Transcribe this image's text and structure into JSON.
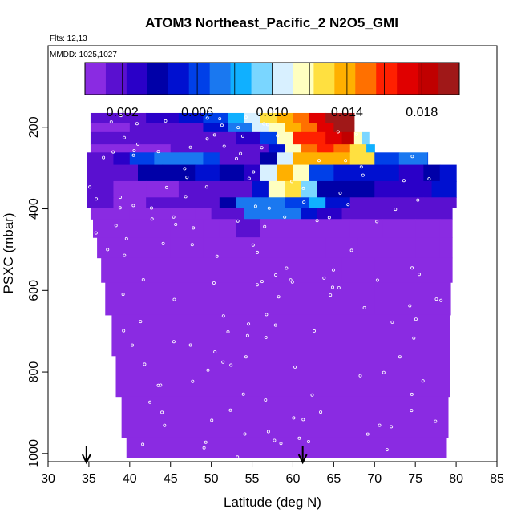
{
  "chart_data": {
    "type": "heatmap",
    "title": "ATOM3 Northeast_Pacific_2 N2O5_GMI",
    "flights_label": "Flts: 12,13",
    "mmdd_label": "MMDD: 1025,1027",
    "xlabel": "Latitude (deg N)",
    "ylabel": "PSXC (mbar)",
    "xlim": [
      30,
      85
    ],
    "ylim": [
      1020,
      0
    ],
    "xticks": [
      "30",
      "35",
      "40",
      "45",
      "50",
      "55",
      "60",
      "65",
      "70",
      "75",
      "80",
      "85"
    ],
    "xtick_values": [
      30,
      35,
      40,
      45,
      50,
      55,
      60,
      65,
      70,
      75,
      80,
      85
    ],
    "yticks": [
      "200",
      "400",
      "600",
      "800",
      "1000"
    ],
    "ytick_values": [
      200,
      400,
      600,
      800,
      1000
    ],
    "colorbar": {
      "min": 0.0,
      "max": 0.02,
      "ticks": [
        "0.002",
        "0.006",
        "0.010",
        "0.014",
        "0.018"
      ],
      "tick_values": [
        0.002,
        0.006,
        0.01,
        0.014,
        0.018
      ],
      "colors": [
        "#8a2be2",
        "#5a10d0",
        "#2a00c8",
        "#0000a8",
        "#0010d0",
        "#0040e8",
        "#1a78f0",
        "#10b0ff",
        "#7ad6ff",
        "#d8f0ff",
        "#ffffc0",
        "#ffe040",
        "#ffb000",
        "#ff7000",
        "#ff2000",
        "#e00000",
        "#c00000",
        "#a01818"
      ]
    },
    "arrows_lat": [
      34.7,
      61.2
    ],
    "rows": [
      {
        "p": [
          165,
          190
        ],
        "lat": [
          35.2,
          67.5
        ],
        "segs": [
          [
            35.2,
            0.0012
          ],
          [
            38,
            0.0015
          ],
          [
            42,
            0.0028
          ],
          [
            46,
            0.0045
          ],
          [
            49,
            0.0065
          ],
          [
            52,
            0.0088
          ],
          [
            54,
            0.0105
          ],
          [
            56,
            0.0125
          ],
          [
            58,
            0.014
          ],
          [
            60,
            0.0155
          ],
          [
            62,
            0.017
          ],
          [
            64,
            0.019
          ]
        ]
      },
      {
        "p": [
          190,
          212
        ],
        "lat": [
          35.2,
          67.5
        ],
        "segs": [
          [
            35.2,
            0.0008
          ],
          [
            40,
            0.0012
          ],
          [
            45,
            0.002
          ],
          [
            49,
            0.0045
          ],
          [
            52,
            0.0075
          ],
          [
            55,
            0.01
          ],
          [
            57,
            0.012
          ],
          [
            59,
            0.0135
          ],
          [
            61,
            0.015
          ],
          [
            63,
            0.0175
          ],
          [
            65,
            0.0195
          ]
        ]
      },
      {
        "p": [
          212,
          242
        ],
        "lat": [
          35.2,
          69.3
        ],
        "segs": [
          [
            35.2,
            0.0015
          ],
          [
            40,
            0.002
          ],
          [
            45,
            0.0022
          ],
          [
            49,
            0.0018
          ],
          [
            53,
            0.0025
          ],
          [
            56,
            0.006
          ],
          [
            58,
            0.012
          ],
          [
            60,
            0.016
          ],
          [
            62,
            0.0165
          ],
          [
            64,
            0.0175
          ],
          [
            66,
            0.0185
          ],
          [
            67.5,
            0.012
          ],
          [
            68.5,
            0.009
          ]
        ]
      },
      {
        "p": [
          242,
          262
        ],
        "lat": [
          35.2,
          70
        ],
        "segs": [
          [
            35.2,
            0.0008
          ],
          [
            40,
            0.001
          ],
          [
            45,
            0.0012
          ],
          [
            50,
            0.0014
          ],
          [
            54,
            0.0022
          ],
          [
            57,
            0.0055
          ],
          [
            59,
            0.0115
          ],
          [
            61,
            0.015
          ],
          [
            63,
            0.016
          ],
          [
            65,
            0.0155
          ],
          [
            67,
            0.013
          ],
          [
            69,
            0.008
          ]
        ]
      },
      {
        "p": [
          262,
          292
        ],
        "lat": [
          34.8,
          76.5
        ],
        "segs": [
          [
            34.8,
            0.0015
          ],
          [
            38,
            0.0025
          ],
          [
            40,
            0.006
          ],
          [
            43,
            0.0072
          ],
          [
            46,
            0.007
          ],
          [
            49,
            0.0065
          ],
          [
            51,
            0.002
          ],
          [
            54,
            0.0018
          ],
          [
            56,
            0.004
          ],
          [
            58,
            0.01
          ],
          [
            60,
            0.0135
          ],
          [
            63,
            0.014
          ],
          [
            67,
            0.013
          ],
          [
            70,
            0.0065
          ],
          [
            73,
            0.0068
          ],
          [
            76.5,
            0.006
          ]
        ]
      },
      {
        "p": [
          292,
          332
        ],
        "lat": [
          34.8,
          80
        ],
        "segs": [
          [
            34.8,
            0.0012
          ],
          [
            38,
            0.0016
          ],
          [
            41,
            0.004
          ],
          [
            44,
            0.0042
          ],
          [
            48,
            0.005
          ],
          [
            51,
            0.0035
          ],
          [
            54,
            0.0025
          ],
          [
            56,
            0.011
          ],
          [
            58,
            0.0135
          ],
          [
            60,
            0.0115
          ],
          [
            62,
            0.0065
          ],
          [
            65,
            0.0055
          ],
          [
            68,
            0.0045
          ],
          [
            71,
            0.0055
          ],
          [
            73,
            0.0025
          ],
          [
            76,
            0.0035
          ],
          [
            78,
            0.005
          ]
        ]
      },
      {
        "p": [
          332,
          372
        ],
        "lat": [
          34.8,
          80
        ],
        "segs": [
          [
            34.8,
            0.0012
          ],
          [
            38,
            0.0009
          ],
          [
            42,
            0.0011
          ],
          [
            46,
            0.0016
          ],
          [
            49,
            0.0014
          ],
          [
            52,
            0.0022
          ],
          [
            55,
            0.0045
          ],
          [
            57,
            0.012
          ],
          [
            59,
            0.0125
          ],
          [
            61,
            0.009
          ],
          [
            63,
            0.004
          ],
          [
            66,
            0.004
          ],
          [
            70,
            0.0028
          ],
          [
            74,
            0.003
          ],
          [
            77,
            0.0045
          ]
        ]
      },
      {
        "p": [
          372,
          397
        ],
        "lat": [
          34.8,
          80
        ],
        "segs": [
          [
            34.8,
            0.0012
          ],
          [
            38,
            0.001
          ],
          [
            42,
            0.0012
          ],
          [
            46,
            0.0014
          ],
          [
            49,
            0.0018
          ],
          [
            51,
            0.004
          ],
          [
            53,
            0.007
          ],
          [
            56,
            0.0075
          ],
          [
            59,
            0.0065
          ],
          [
            62,
            0.008
          ],
          [
            64,
            0.0045
          ],
          [
            67,
            0.0015
          ],
          [
            70,
            0.0015
          ],
          [
            73,
            0.0012
          ],
          [
            76,
            0.0016
          ],
          [
            78,
            0.0013
          ]
        ]
      },
      {
        "p": [
          397,
          425
        ],
        "lat": [
          35.2,
          79.5
        ],
        "segs": [
          [
            35.2,
            0.0001
          ],
          [
            40,
            0.0001
          ],
          [
            45,
            0.0002
          ],
          [
            48,
            0.0004
          ],
          [
            50,
            0.0014
          ],
          [
            52,
            0.002
          ],
          [
            54,
            0.007
          ],
          [
            58,
            0.0072
          ],
          [
            61,
            0.0055
          ],
          [
            63,
            0.0028
          ],
          [
            66,
            0.0018
          ],
          [
            70,
            0.0013
          ],
          [
            74,
            0.0013
          ],
          [
            78,
            0.0012
          ]
        ]
      },
      {
        "p": [
          425,
          470
        ],
        "lat": [
          35.5,
          79.5
        ],
        "segs": [
          [
            35.5,
            0.0001
          ],
          [
            45,
            0.0002
          ],
          [
            49,
            0.0004
          ],
          [
            51,
            0.0008
          ],
          [
            53,
            0.0012
          ],
          [
            56,
            0.0011
          ],
          [
            60,
            0.0008
          ],
          [
            63,
            0.0006
          ],
          [
            67,
            0.0008
          ],
          [
            71,
            0.001
          ],
          [
            75,
            0.0007
          ],
          [
            78,
            0.0009
          ]
        ]
      },
      {
        "p": [
          470,
          520
        ],
        "lat": [
          36,
          79.5
        ],
        "segs": [
          [
            36,
            0.0001
          ],
          [
            45,
            0.0001
          ],
          [
            49,
            0.0003
          ],
          [
            52,
            0.0006
          ],
          [
            56,
            0.0007
          ],
          [
            60,
            0.0005
          ],
          [
            64,
            0.0004
          ],
          [
            68,
            0.0004
          ],
          [
            72,
            0.0005
          ],
          [
            75,
            0.0003
          ],
          [
            78,
            0.0006
          ]
        ]
      },
      {
        "p": [
          520,
          580
        ],
        "lat": [
          36.5,
          79.5
        ],
        "segs": [
          [
            36.5,
            0.0001
          ],
          [
            50,
            0.0002
          ],
          [
            53,
            0.0003
          ],
          [
            58,
            0.0002
          ],
          [
            62,
            0.0002
          ],
          [
            66,
            0.0002
          ],
          [
            70,
            0.0003
          ],
          [
            74,
            0.0001
          ]
        ]
      },
      {
        "p": [
          580,
          660
        ],
        "lat": [
          37,
          79.3
        ],
        "segs": [
          [
            37,
            0.0001
          ],
          [
            60,
            0.0001
          ],
          [
            70,
            0.0002
          ],
          [
            74,
            0.0001
          ]
        ]
      },
      {
        "p": [
          660,
          760
        ],
        "lat": [
          37.8,
          79.2
        ],
        "segs": [
          [
            37.8,
            0.0001
          ]
        ]
      },
      {
        "p": [
          760,
          860
        ],
        "lat": [
          38.3,
          79.2
        ],
        "segs": [
          [
            38.3,
            0.0001
          ]
        ]
      },
      {
        "p": [
          860,
          960
        ],
        "lat": [
          39,
          79
        ],
        "segs": [
          [
            39,
            0.0001
          ]
        ]
      },
      {
        "p": [
          960,
          1010
        ],
        "lat": [
          39.6,
          78.8
        ],
        "segs": [
          [
            39.6,
            0.0001
          ]
        ]
      }
    ]
  }
}
